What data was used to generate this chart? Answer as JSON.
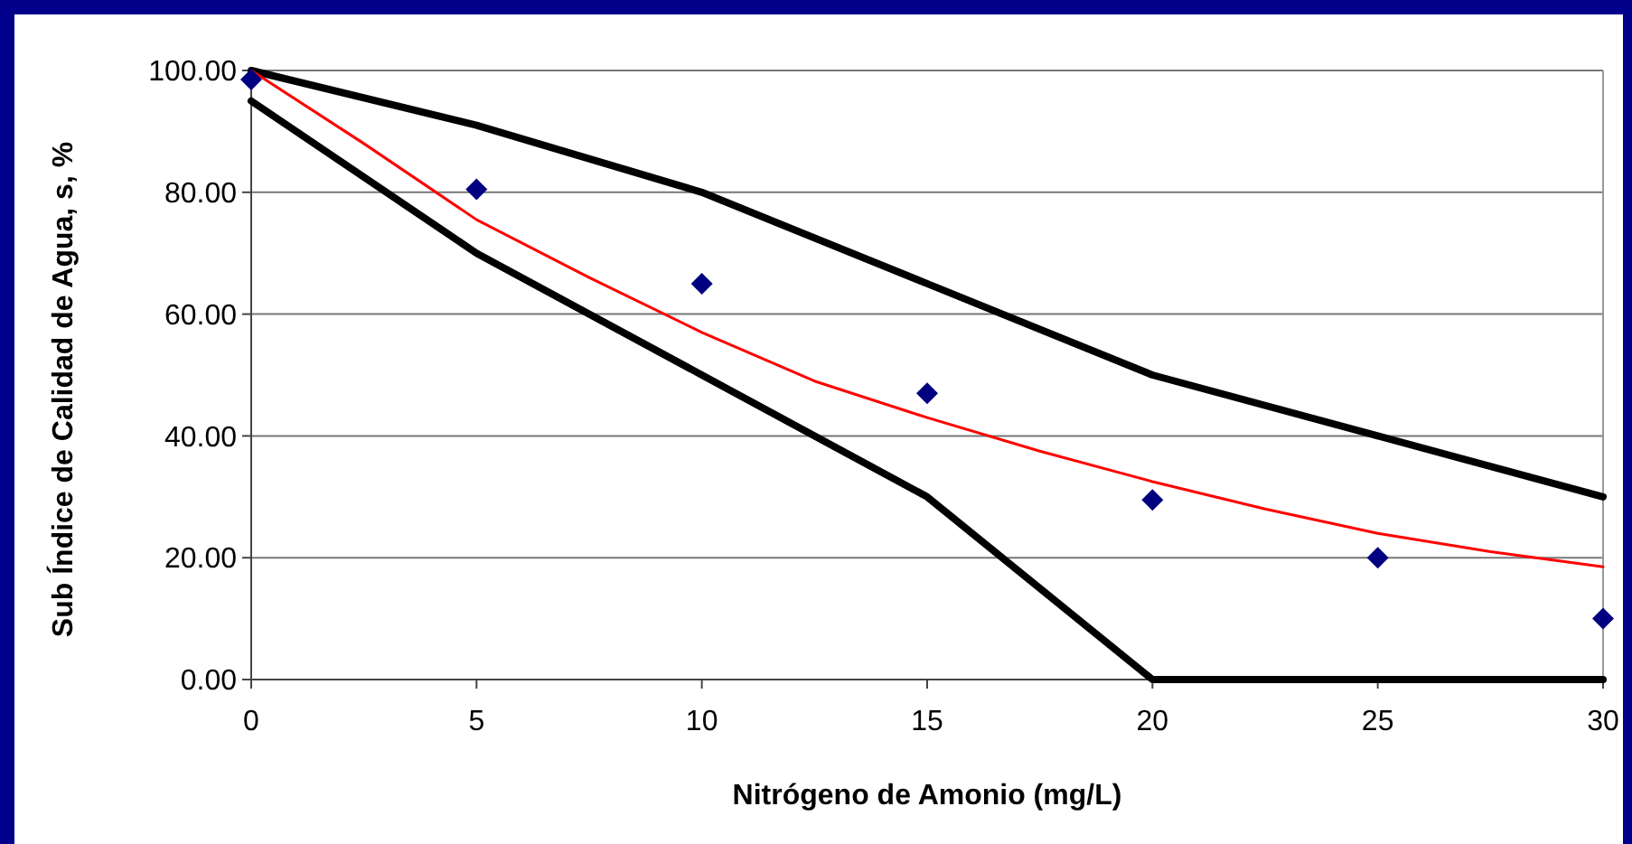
{
  "chart_data": {
    "type": "line",
    "xlabel": "Nitrógeno de Amonio (mg/L)",
    "ylabel": "Sub Índice de Calidad de Agua, s, %",
    "xlim": [
      0,
      30
    ],
    "xticks": [
      0,
      5,
      10,
      15,
      20,
      25,
      30
    ],
    "ylim": [
      0,
      100
    ],
    "yticks": [
      {
        "value": 0,
        "label": "0.00"
      },
      {
        "value": 20,
        "label": "20.00"
      },
      {
        "value": 40,
        "label": "40.00"
      },
      {
        "value": 60,
        "label": "60.00"
      },
      {
        "value": 80,
        "label": "80.00"
      },
      {
        "value": 100,
        "label": "100.00"
      }
    ],
    "grid": "y",
    "series": [
      {
        "color": "#000000",
        "x": [
          0,
          5,
          10,
          15,
          20,
          25,
          30
        ],
        "values": [
          100,
          91,
          80,
          65,
          50,
          40,
          30
        ]
      },
      {
        "color": "#000000",
        "x": [
          0,
          5,
          10,
          15,
          20,
          25,
          30
        ],
        "values": [
          95,
          70,
          50,
          30,
          0,
          0,
          0
        ]
      },
      {
        "color": "#ff0000",
        "x": [
          0,
          2.5,
          5,
          7.5,
          10,
          12.5,
          15,
          17.5,
          20,
          22.5,
          25,
          27.5,
          30
        ],
        "values": [
          100,
          88,
          75.5,
          66,
          57,
          49,
          43,
          37.5,
          32.5,
          28,
          24,
          21,
          18.5
        ]
      },
      {
        "type": "scatter",
        "color": "#000080",
        "marker": "diamond",
        "x": [
          0,
          5,
          10,
          15,
          20,
          25,
          30
        ],
        "values": [
          98.5,
          80.5,
          65,
          47,
          29.5,
          20,
          10
        ]
      }
    ]
  }
}
